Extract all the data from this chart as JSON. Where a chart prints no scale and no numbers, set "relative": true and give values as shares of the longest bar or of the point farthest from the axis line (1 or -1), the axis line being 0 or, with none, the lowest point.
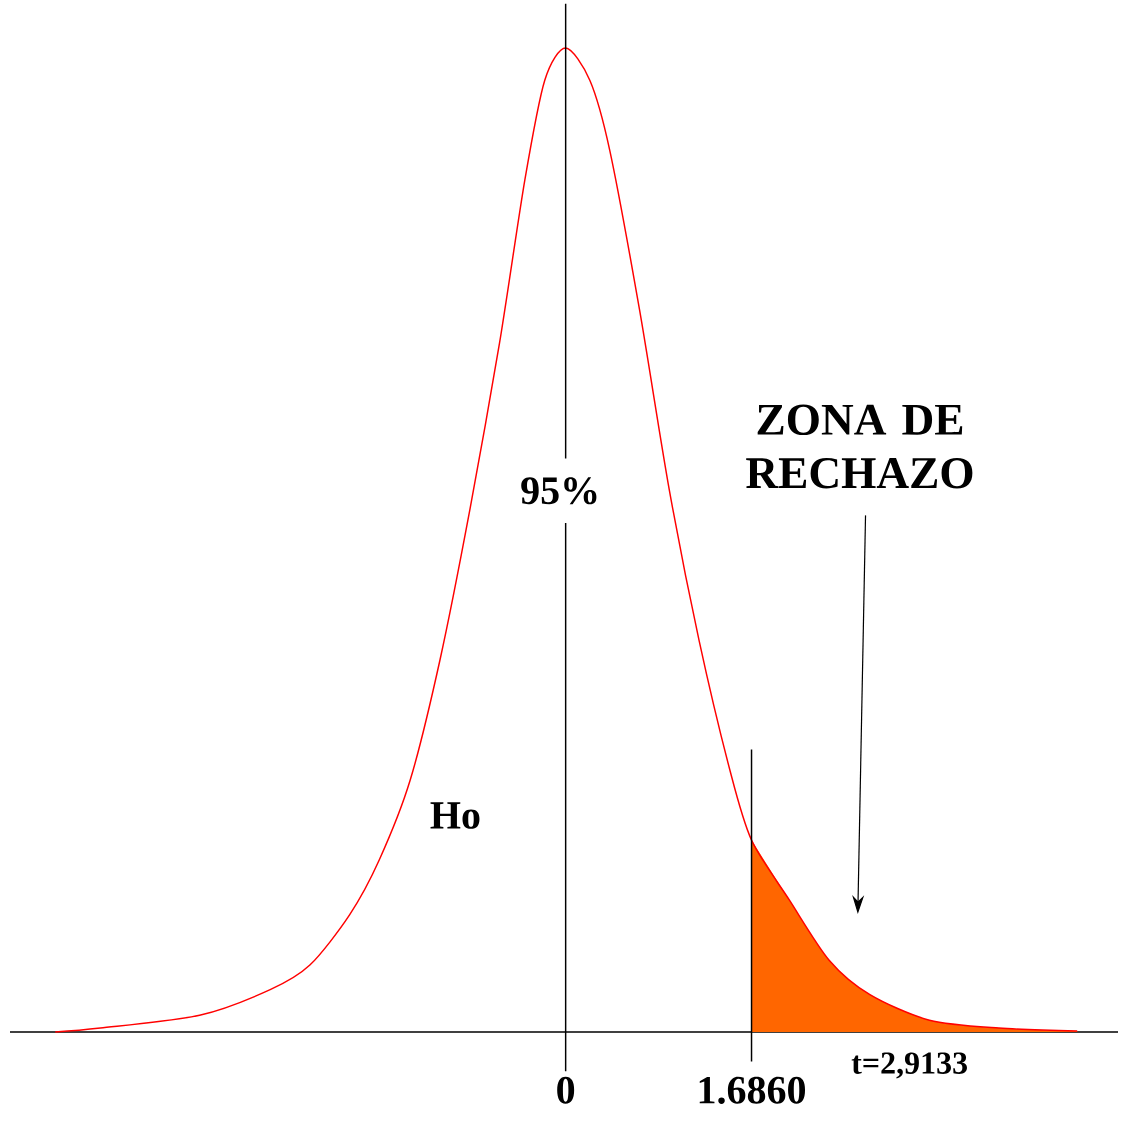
{
  "chart_data": {
    "type": "line",
    "relative": true,
    "xlim": [
      -5.04,
      5.01
    ],
    "xticks": [
      {
        "value": 0,
        "label": "0"
      },
      {
        "value": 1.686,
        "label": "1.6860"
      }
    ],
    "series": [
      {
        "type": "line",
        "color": "#ff0000",
        "x": [
          -4.63,
          -4.22,
          -3.32,
          -2.68,
          -2.32,
          -1.96,
          -1.69,
          -1.41,
          -1.14,
          -0.87,
          -0.6,
          -0.37,
          -0.19,
          0,
          0.22,
          0.4,
          0.67,
          0.94,
          1.21,
          1.49,
          1.686,
          2.03,
          2.39,
          2.76,
          3.3,
          3.93,
          4.64
        ],
        "values": [
          0.0,
          0.004,
          0.017,
          0.043,
          0.068,
          0.119,
          0.175,
          0.256,
          0.378,
          0.53,
          0.7,
          0.866,
          0.967,
          1.0,
          0.967,
          0.896,
          0.734,
          0.551,
          0.398,
          0.266,
          0.195,
          0.134,
          0.073,
          0.038,
          0.012,
          0.004,
          0.001
        ]
      },
      {
        "type": "area",
        "color": "#ff6600",
        "x": [
          1.686,
          2.03,
          2.39,
          2.76,
          3.3,
          3.93,
          4.64
        ],
        "values": [
          0.195,
          0.134,
          0.073,
          0.038,
          0.012,
          0.004,
          0.001
        ]
      }
    ],
    "ref_lines": [
      {
        "axis": "x",
        "value": 0
      },
      {
        "axis": "x",
        "value": 1.686
      }
    ],
    "annotations": [
      "Ho",
      "95%",
      "ZONA DE RECHAZO",
      "t=2,9133"
    ]
  }
}
